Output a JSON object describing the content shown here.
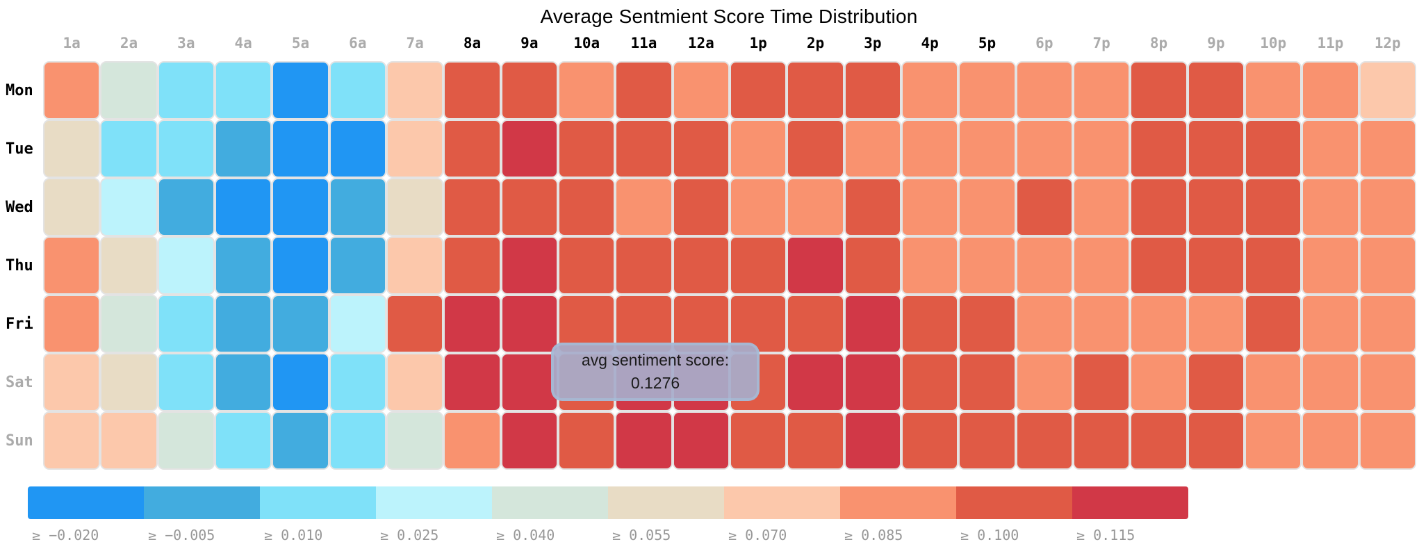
{
  "chart_data": {
    "type": "heatmap",
    "title": "Average Sentmient Score Time Distribution",
    "x_labels": [
      "1a",
      "2a",
      "3a",
      "4a",
      "5a",
      "6a",
      "7a",
      "8a",
      "9a",
      "10a",
      "11a",
      "12a",
      "1p",
      "2p",
      "3p",
      "4p",
      "5p",
      "6p",
      "7p",
      "8p",
      "9p",
      "10p",
      "11p",
      "12p"
    ],
    "x_muted": [
      true,
      true,
      true,
      true,
      true,
      true,
      true,
      false,
      false,
      false,
      false,
      false,
      false,
      false,
      false,
      false,
      false,
      true,
      true,
      true,
      true,
      true,
      true,
      true
    ],
    "y_labels": [
      "Mon",
      "Tue",
      "Wed",
      "Thu",
      "Fri",
      "Sat",
      "Sun"
    ],
    "y_muted": [
      false,
      false,
      false,
      false,
      false,
      true,
      true
    ],
    "legend": {
      "position": "bottom",
      "entries": [
        {
          "threshold": "≥ −0.020",
          "color": "#2096f3"
        },
        {
          "threshold": "≥ −0.005",
          "color": "#42acdf"
        },
        {
          "threshold": "≥ 0.010",
          "color": "#7fe1f9"
        },
        {
          "threshold": "≥ 0.025",
          "color": "#bcf3fc"
        },
        {
          "threshold": "≥ 0.040",
          "color": "#d4e6db"
        },
        {
          "threshold": "≥ 0.055",
          "color": "#e8dcc5"
        },
        {
          "threshold": "≥ 0.070",
          "color": "#fcc8ab"
        },
        {
          "threshold": "≥ 0.085",
          "color": "#f9926f"
        },
        {
          "threshold": "≥ 0.100",
          "color": "#e05a45"
        },
        {
          "threshold": "≥ 0.115",
          "color": "#d13847"
        }
      ]
    },
    "cell_bins": [
      [
        7,
        4,
        2,
        2,
        0,
        2,
        6,
        8,
        8,
        7,
        8,
        7,
        8,
        8,
        8,
        7,
        7,
        7,
        7,
        8,
        8,
        7,
        7,
        6
      ],
      [
        5,
        2,
        2,
        1,
        0,
        0,
        6,
        8,
        9,
        8,
        8,
        8,
        7,
        8,
        7,
        7,
        7,
        7,
        7,
        8,
        8,
        8,
        7,
        7
      ],
      [
        5,
        3,
        1,
        0,
        0,
        1,
        5,
        8,
        8,
        8,
        7,
        8,
        7,
        7,
        8,
        7,
        7,
        8,
        7,
        8,
        8,
        8,
        7,
        7
      ],
      [
        7,
        5,
        3,
        1,
        0,
        1,
        6,
        8,
        9,
        8,
        8,
        8,
        8,
        9,
        8,
        7,
        7,
        7,
        7,
        8,
        8,
        8,
        7,
        7
      ],
      [
        7,
        4,
        2,
        1,
        1,
        3,
        8,
        9,
        9,
        8,
        8,
        8,
        8,
        8,
        9,
        8,
        8,
        7,
        7,
        7,
        7,
        8,
        7,
        7
      ],
      [
        6,
        5,
        2,
        1,
        0,
        2,
        6,
        9,
        9,
        8,
        9,
        9,
        8,
        9,
        9,
        8,
        8,
        7,
        8,
        7,
        8,
        7,
        7,
        7
      ],
      [
        6,
        6,
        4,
        2,
        1,
        2,
        4,
        7,
        9,
        8,
        9,
        9,
        8,
        8,
        9,
        8,
        8,
        8,
        8,
        8,
        8,
        7,
        7,
        7
      ]
    ],
    "tooltip": {
      "label": "avg sentiment score:",
      "value": "0.1276"
    }
  }
}
